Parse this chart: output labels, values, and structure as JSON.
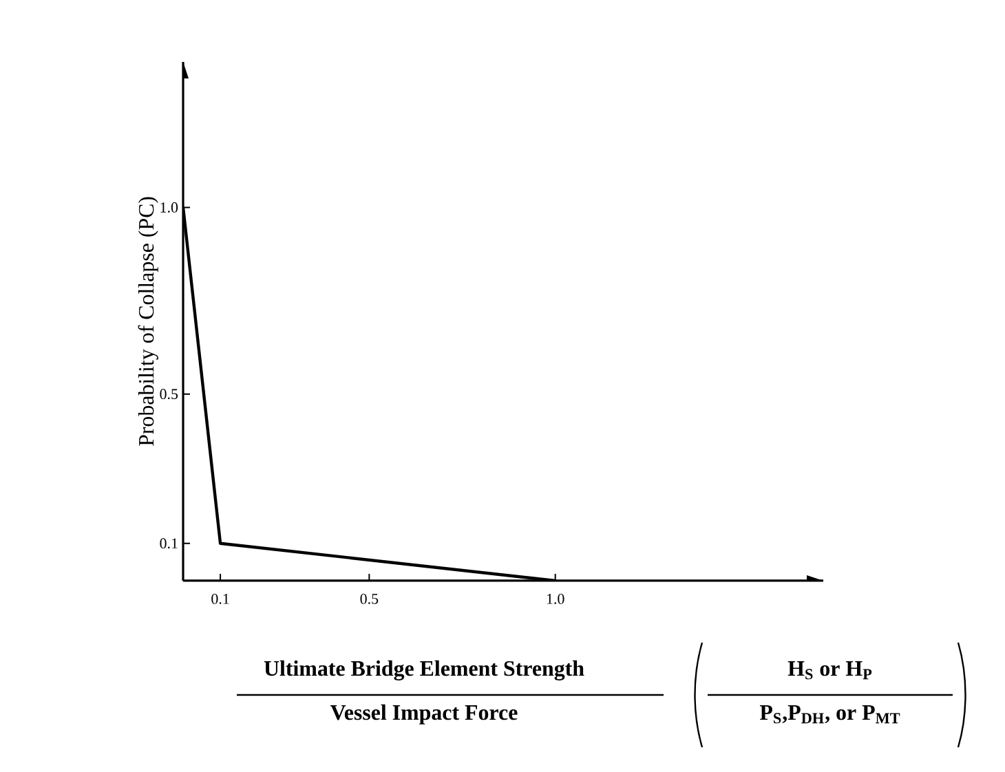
{
  "chart_data": {
    "type": "line",
    "ylabel": "Probability of Collapse (PC)",
    "xlabel": "Ultimate Bridge Element Strength",
    "annotations": [
      "Vessel Impact Force",
      "H$_{S}$ or H$_{P}$",
      "P$_{S}$,P$_{DH}$, or P$_{MT}$"
    ],
    "x": [
      0,
      0.1,
      1.0
    ],
    "series": [
      {
        "color": "#000000",
        "values": [
          1.0,
          0.1,
          0.0
        ]
      }
    ],
    "xlim": [
      0,
      1.72
    ],
    "ylim": [
      0,
      1.39
    ],
    "xticks": [
      0.1,
      0.5,
      {
        "value": 1.0,
        "label": "1.0"
      }
    ],
    "yticks": [
      0.1,
      0.5,
      {
        "value": 1.0,
        "label": "1.0"
      }
    ]
  }
}
